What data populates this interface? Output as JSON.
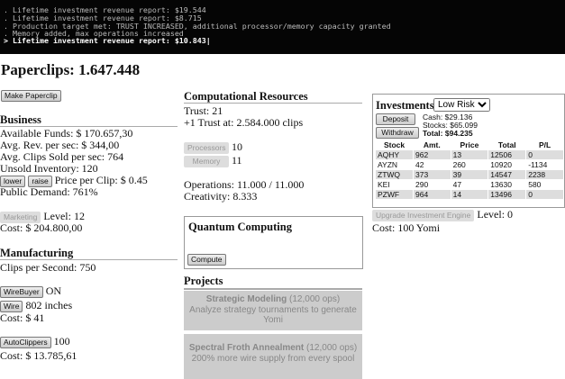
{
  "console": {
    "lines": [
      ". Lifetime investment revenue report: $19.544",
      ". Lifetime investment revenue report: $8.715",
      ". Production target met: TRUST INCREASED, additional processor/memory capacity granted",
      ". Memory added, max operations increased"
    ],
    "current": "> Lifetime investment revenue report: $10.843|"
  },
  "title": "Paperclips: 1.647.448",
  "make_paperclip": "Make Paperclip",
  "business": {
    "heading": "Business",
    "funds": "Available Funds: $ 170.657,30",
    "avg_rev": "Avg. Rev. per sec: $ 344,00",
    "avg_clips": "Avg. Clips Sold per sec: 764",
    "unsold": "Unsold Inventory: 120",
    "lower": "lower",
    "raise": "raise",
    "price": "Price per Clip: $ 0.45",
    "demand": "Public Demand: 761%",
    "marketing": "Marketing",
    "marketing_level": "Level: 12",
    "marketing_cost": "Cost: $ 204.800,00"
  },
  "manufacturing": {
    "heading": "Manufacturing",
    "cps": "Clips per Second: 750",
    "wirebuyer": "WireBuyer",
    "wirebuyer_state": "ON",
    "wire": "Wire",
    "wire_amount": "802 inches",
    "wire_cost": "Cost: $ 41",
    "autoclippers": "AutoClippers",
    "autoclippers_count": "100",
    "autoclippers_cost": "Cost: $ 13.785,61"
  },
  "computational": {
    "heading": "Computational Resources",
    "trust": "Trust: 21",
    "next_trust": "+1 Trust at: 2.584.000 clips",
    "processors": "Processors",
    "processors_count": "10",
    "memory": "Memory",
    "memory_count": "11",
    "operations": "Operations: 11.000 / 11.000",
    "creativity": "Creativity: 8.333"
  },
  "quantum": {
    "heading": "Quantum Computing",
    "compute": "Compute"
  },
  "projects": {
    "heading": "Projects",
    "items": [
      {
        "name": "Strategic Modeling",
        "cost": "(12,000 ops)",
        "desc": "Analyze strategy tournaments to generate Yomi"
      },
      {
        "name": "Spectral Froth Annealment",
        "cost": "(12,000 ops)",
        "desc": "200% more wire supply from every spool"
      }
    ]
  },
  "investments": {
    "heading": "Investments",
    "risk": "Low Risk",
    "deposit": "Deposit",
    "withdraw": "Withdraw",
    "cash": "Cash: $29.136",
    "stocks": "Stocks: $65.099",
    "total": "Total: $94.235",
    "columns": [
      "Stock",
      "Amt.",
      "Price",
      "Total",
      "P/L"
    ],
    "rows": [
      [
        "AQHY",
        "962",
        "13",
        "12506",
        "0"
      ],
      [
        "AYZN",
        "42",
        "260",
        "10920",
        "-1134"
      ],
      [
        "ZTWQ",
        "373",
        "39",
        "14547",
        "2238"
      ],
      [
        "KEI",
        "290",
        "47",
        "13630",
        "580"
      ],
      [
        "PZWF",
        "964",
        "14",
        "13496",
        "0"
      ]
    ],
    "upgrade": "Upgrade Investment Engine",
    "level": "Level: 0",
    "cost": "Cost: 100 Yomi"
  }
}
